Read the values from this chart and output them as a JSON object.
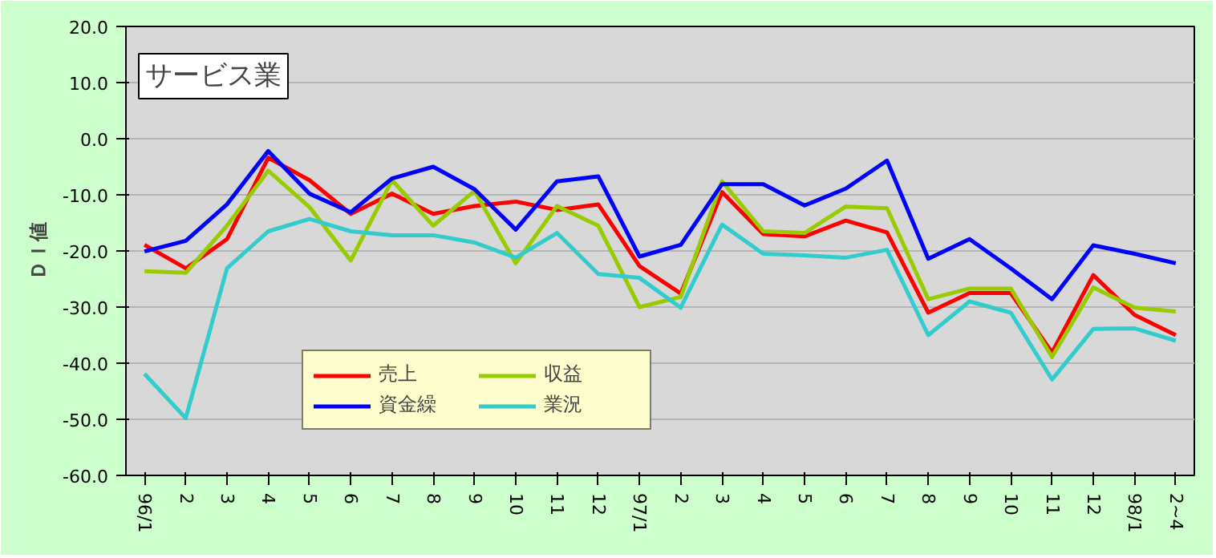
{
  "chart_data": {
    "type": "line",
    "title": "サービス業",
    "ylabel": "ＤＩ値",
    "categories": [
      "96/1",
      "2",
      "3",
      "4",
      "5",
      "6",
      "7",
      "8",
      "9",
      "10",
      "11",
      "12",
      "97/1",
      "2",
      "3",
      "4",
      "5",
      "6",
      "7",
      "8",
      "9",
      "10",
      "11",
      "12",
      "98/1",
      "2~4"
    ],
    "series": [
      {
        "name": "売上",
        "color": "#ff0000",
        "values": [
          -18.9,
          -23.1,
          -17.9,
          -3.4,
          -7.4,
          -13.4,
          -9.8,
          -13.4,
          -12,
          -11.2,
          -12.7,
          -11.7,
          -22.7,
          -27.6,
          -9.5,
          -17,
          -17.4,
          -14.6,
          -16.7,
          -31,
          -27.5,
          -27.5,
          -38.1,
          -24.3,
          -31.4,
          -35
        ]
      },
      {
        "name": "収益",
        "color": "#99cc00",
        "values": [
          -23.6,
          -23.9,
          -15.5,
          -5.7,
          -12.2,
          -21.7,
          -7.4,
          -15.5,
          -9.3,
          -22.2,
          -12,
          -15.5,
          -30,
          -28.2,
          -7.6,
          -16.5,
          -16.8,
          -12.1,
          -12.4,
          -28.6,
          -26.7,
          -26.7,
          -38.9,
          -26.5,
          -30.1,
          -30.8
        ]
      },
      {
        "name": "資金繰",
        "color": "#0000ff",
        "values": [
          -20.1,
          -18.2,
          -11.7,
          -2.2,
          -9.8,
          -13.1,
          -7.1,
          -5,
          -9,
          -16.2,
          -7.6,
          -6.7,
          -21,
          -18.9,
          -8.1,
          -8.1,
          -11.9,
          -8.9,
          -3.9,
          -21.4,
          -17.9,
          -23.1,
          -28.6,
          -19,
          -20.5,
          -22.2
        ]
      },
      {
        "name": "業況",
        "color": "#33cccc",
        "values": [
          -41.9,
          -49.8,
          -23.1,
          -16.5,
          -14.3,
          -16.5,
          -17.2,
          -17.2,
          -18.5,
          -21.2,
          -16.8,
          -24.1,
          -24.8,
          -30.1,
          -15.3,
          -20.5,
          -20.8,
          -21.2,
          -19.8,
          -35,
          -29,
          -31,
          -42.9,
          -33.9,
          -33.8,
          -36
        ]
      }
    ],
    "ylim": [
      -60,
      20
    ],
    "yticks": [
      {
        "value": 20,
        "label": "20.0"
      },
      {
        "value": 10,
        "label": "10.0"
      },
      {
        "value": 0,
        "label": "0.0"
      },
      {
        "value": -10,
        "label": "-10.0"
      },
      {
        "value": -20,
        "label": "-20.0"
      },
      {
        "value": -30,
        "label": "-30.0"
      },
      {
        "value": -40,
        "label": "-40.0"
      },
      {
        "value": -50,
        "label": "-50.0"
      },
      {
        "value": -60,
        "label": "-60.0"
      }
    ],
    "grid": "y",
    "legend": "bottom left",
    "marker": "none",
    "line_style": "solid"
  }
}
